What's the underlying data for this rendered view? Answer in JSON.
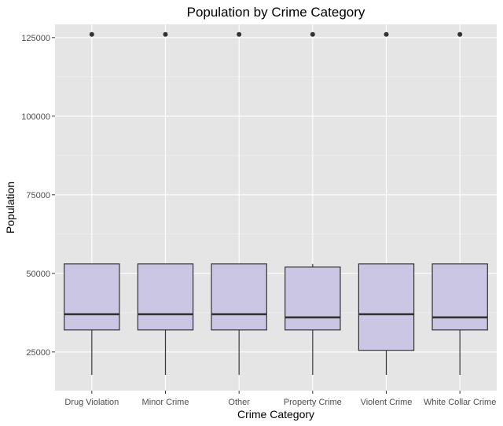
{
  "chart_data": {
    "type": "boxplot",
    "title": "Population by Crime Category",
    "xlabel": "Crime Category",
    "ylabel": "Population",
    "categories": [
      "Drug Violation",
      "Minor Crime",
      "Other",
      "Property Crime",
      "Violent Crime",
      "White Collar Crime"
    ],
    "yticks": [
      25000,
      50000,
      75000,
      100000,
      125000
    ],
    "ytick_labels": [
      "25000",
      "50000",
      "75000",
      "100000",
      "125000"
    ],
    "ylim": [
      12700,
      129200
    ],
    "grid": true,
    "box_fill": "#cbc6e4",
    "panel_background": "#e5e5e5",
    "boxes": [
      {
        "category": "Drug Violation",
        "whisker_low": 17700,
        "q1": 32000,
        "median": 37000,
        "q3": 53000,
        "whisker_high": 53000,
        "outliers": [
          126000
        ]
      },
      {
        "category": "Minor Crime",
        "whisker_low": 17700,
        "q1": 32000,
        "median": 37000,
        "q3": 53000,
        "whisker_high": 53000,
        "outliers": [
          126000
        ]
      },
      {
        "category": "Other",
        "whisker_low": 17700,
        "q1": 32000,
        "median": 37000,
        "q3": 53000,
        "whisker_high": 53000,
        "outliers": [
          126000
        ]
      },
      {
        "category": "Property Crime",
        "whisker_low": 17700,
        "q1": 32000,
        "median": 36000,
        "q3": 52000,
        "whisker_high": 53000,
        "outliers": [
          126000
        ]
      },
      {
        "category": "Violent Crime",
        "whisker_low": 17700,
        "q1": 25500,
        "median": 37000,
        "q3": 53000,
        "whisker_high": 53000,
        "outliers": [
          126000
        ]
      },
      {
        "category": "White Collar Crime",
        "whisker_low": 17700,
        "q1": 32000,
        "median": 36000,
        "q3": 53000,
        "whisker_high": 53000,
        "outliers": [
          126000
        ]
      }
    ]
  }
}
